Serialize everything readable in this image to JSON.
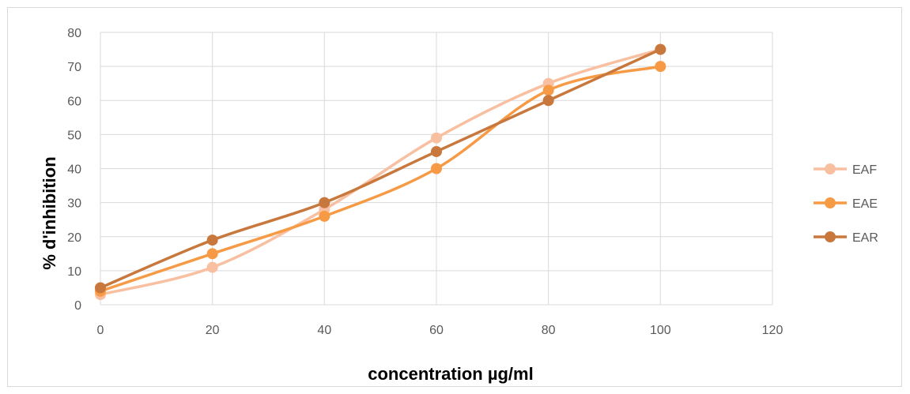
{
  "chart_data": {
    "type": "line",
    "title": "",
    "xlabel": "concentration µg/ml",
    "ylabel": "% d'inhibition",
    "xlim": [
      0,
      120
    ],
    "ylim": [
      0,
      80
    ],
    "xticks": [
      0,
      20,
      40,
      60,
      80,
      100,
      120
    ],
    "yticks": [
      0,
      10,
      20,
      30,
      40,
      50,
      60,
      70,
      80
    ],
    "grid": "horizontal",
    "legend_position": "right",
    "smooth": true,
    "x": [
      0,
      20,
      40,
      60,
      80,
      100
    ],
    "series": [
      {
        "name": "EAF",
        "color": "#f8c0a0",
        "values": [
          3,
          11,
          28,
          49,
          65,
          75
        ]
      },
      {
        "name": "EAE",
        "color": "#f79a45",
        "values": [
          4,
          15,
          26,
          40,
          63,
          70
        ]
      },
      {
        "name": "EAR",
        "color": "#c8783c",
        "values": [
          5,
          19,
          30,
          45,
          60,
          75
        ]
      }
    ]
  }
}
